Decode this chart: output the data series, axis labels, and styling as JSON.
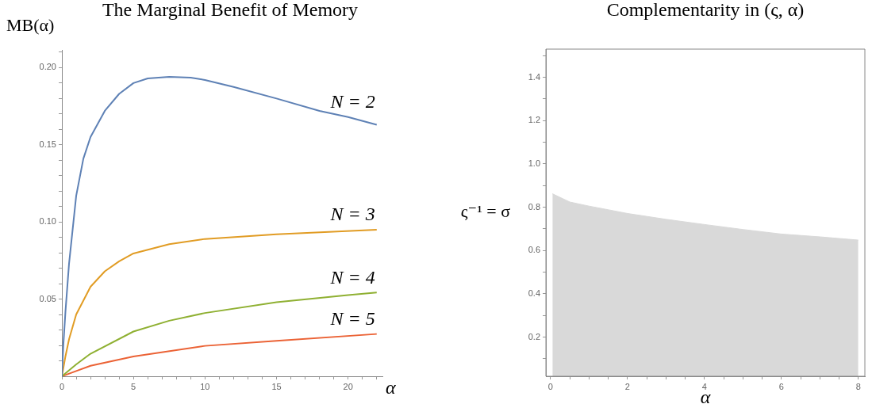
{
  "chart_data": [
    {
      "type": "line",
      "title": "The Marginal Benefit of Memory",
      "xlabel": "α",
      "ylabel": "MB(α)",
      "grid": false,
      "legend": false,
      "marker": "none",
      "line_style": "solid",
      "xlim": [
        0,
        22.4
      ],
      "ylim": [
        0,
        0.2115
      ],
      "xticks": [
        0,
        {
          "value": 1,
          "label": null
        },
        {
          "value": 2,
          "label": null
        },
        {
          "value": 3,
          "label": null
        },
        {
          "value": 4,
          "label": null
        },
        5,
        {
          "value": 6,
          "label": null
        },
        {
          "value": 7,
          "label": null
        },
        {
          "value": 8,
          "label": null
        },
        {
          "value": 9,
          "label": null
        },
        10,
        {
          "value": 11,
          "label": null
        },
        {
          "value": 12,
          "label": null
        },
        {
          "value": 13,
          "label": null
        },
        {
          "value": 14,
          "label": null
        },
        15,
        {
          "value": 16,
          "label": null
        },
        {
          "value": 17,
          "label": null
        },
        {
          "value": 18,
          "label": null
        },
        {
          "value": 19,
          "label": null
        },
        20,
        {
          "value": 21,
          "label": null
        },
        {
          "value": 22,
          "label": null
        }
      ],
      "yticks": [
        {
          "value": 0.01,
          "label": null
        },
        {
          "value": 0.02,
          "label": null
        },
        {
          "value": 0.03,
          "label": null
        },
        {
          "value": 0.04,
          "label": null
        },
        0.05,
        {
          "value": 0.06,
          "label": null
        },
        {
          "value": 0.07,
          "label": null
        },
        {
          "value": 0.08,
          "label": null
        },
        {
          "value": 0.09,
          "label": null
        },
        {
          "value": 0.1,
          "label": "0.10"
        },
        {
          "value": 0.11,
          "label": null
        },
        {
          "value": 0.12,
          "label": null
        },
        {
          "value": 0.13,
          "label": null
        },
        {
          "value": 0.14,
          "label": null
        },
        0.15,
        {
          "value": 0.16,
          "label": null
        },
        {
          "value": 0.17,
          "label": null
        },
        {
          "value": 0.18,
          "label": null
        },
        {
          "value": 0.19,
          "label": null
        },
        {
          "value": 0.2,
          "label": "0.20"
        },
        {
          "value": 0.21,
          "label": null
        }
      ],
      "series": [
        {
          "name": "N = 2",
          "color": "#5e81b5",
          "x": [
            0,
            0.1,
            0.25,
            0.5,
            1,
            1.5,
            2,
            3,
            4,
            5,
            6,
            7.5,
            9,
            10,
            12,
            15,
            18,
            20,
            22
          ],
          "values": [
            0,
            0.02,
            0.042,
            0.073,
            0.117,
            0.141,
            0.155,
            0.172,
            0.183,
            0.19,
            0.193,
            0.194,
            0.1935,
            0.192,
            0.1875,
            0.18,
            0.172,
            0.168,
            0.163
          ]
        },
        {
          "name": "N = 3",
          "color": "#e19c24",
          "x": [
            0,
            0.25,
            0.5,
            1,
            2,
            3,
            4,
            5,
            7.5,
            10,
            15,
            22
          ],
          "values": [
            0,
            0.013,
            0.024,
            0.04,
            0.058,
            0.068,
            0.0745,
            0.0796,
            0.0856,
            0.089,
            0.092,
            0.095
          ]
        },
        {
          "name": "N = 4",
          "color": "#8fb032",
          "x": [
            0,
            1,
            2,
            5,
            7.5,
            10,
            15,
            20,
            22
          ],
          "values": [
            0,
            0.0077,
            0.0146,
            0.029,
            0.036,
            0.041,
            0.048,
            0.0526,
            0.0543
          ]
        },
        {
          "name": "N = 5",
          "color": "#eb6235",
          "x": [
            0,
            1,
            2,
            5,
            10,
            15,
            22
          ],
          "values": [
            0,
            0.0034,
            0.0068,
            0.0128,
            0.0197,
            0.023,
            0.0274
          ]
        }
      ]
    },
    {
      "type": "area",
      "title": "Complementarity in (ς, α)",
      "xlabel": "α",
      "ylabel": "ς⁻¹ = σ",
      "grid": false,
      "legend": false,
      "xlim": [
        -0.12,
        8.17
      ],
      "ylim": [
        0.019,
        1.53
      ],
      "xticks": [
        0,
        {
          "value": 0.5,
          "label": null
        },
        {
          "value": 1,
          "label": null
        },
        {
          "value": 1.5,
          "label": null
        },
        2,
        {
          "value": 2.5,
          "label": null
        },
        {
          "value": 3,
          "label": null
        },
        {
          "value": 3.5,
          "label": null
        },
        4,
        {
          "value": 4.5,
          "label": null
        },
        {
          "value": 5,
          "label": null
        },
        {
          "value": 5.5,
          "label": null
        },
        6,
        {
          "value": 6.5,
          "label": null
        },
        {
          "value": 7,
          "label": null
        },
        {
          "value": 7.5,
          "label": null
        },
        8
      ],
      "yticks": [
        {
          "value": 0.1,
          "label": null
        },
        0.2,
        {
          "value": 0.3,
          "label": null
        },
        0.4,
        {
          "value": 0.5,
          "label": null
        },
        0.6,
        {
          "value": 0.7,
          "label": null
        },
        0.8,
        {
          "value": 0.9,
          "label": null
        },
        {
          "value": 1,
          "label": "1.0"
        },
        {
          "value": 1.1,
          "label": null
        },
        1.2,
        {
          "value": 1.3,
          "label": null
        },
        1.4,
        {
          "value": 1.5,
          "label": null
        }
      ],
      "series": [
        {
          "color": "#d9d9d9",
          "x": [
            0.05,
            0.5,
            1,
            2,
            3,
            4,
            5,
            6,
            7,
            8
          ],
          "values": [
            0.862,
            0.824,
            0.805,
            0.771,
            0.744,
            0.72,
            0.697,
            0.676,
            0.663,
            0.648
          ]
        }
      ]
    }
  ]
}
